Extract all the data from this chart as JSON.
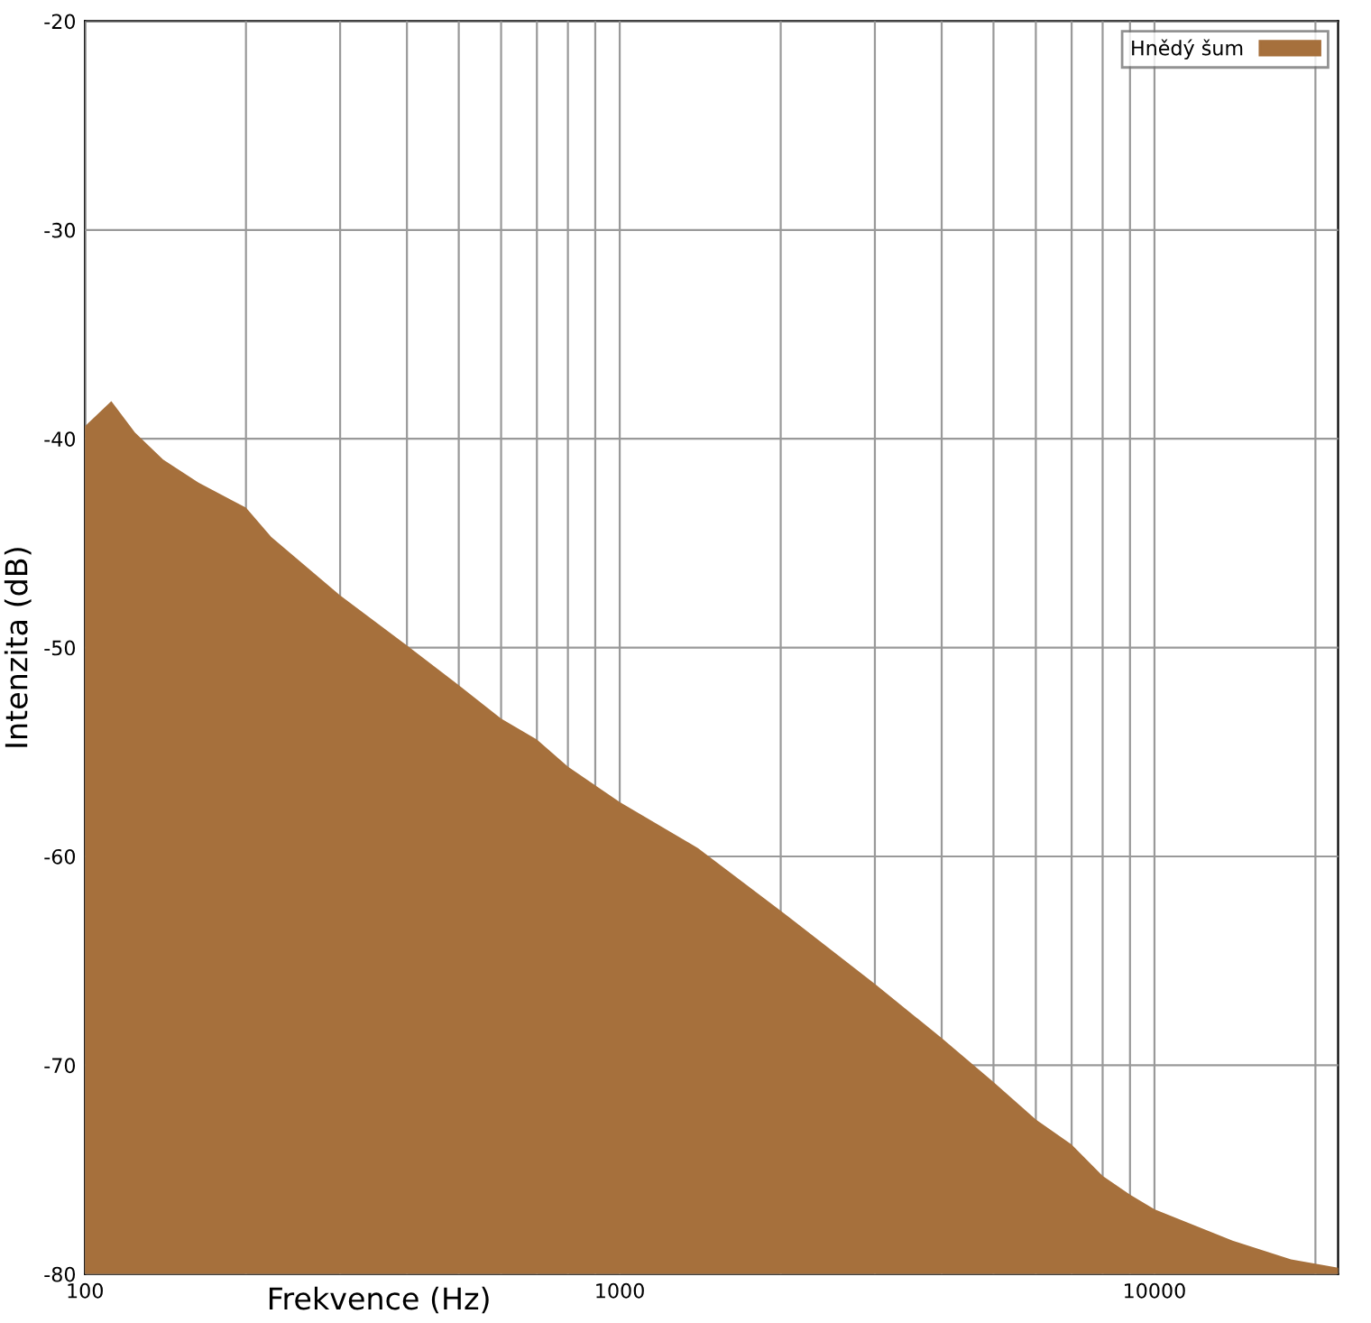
{
  "chart_data": {
    "type": "area",
    "xlabel": "Frekvence (Hz)",
    "ylabel": "Intenzita (dB)",
    "log": "x",
    "x": [
      100,
      112,
      124,
      140,
      163,
      200,
      223,
      300,
      400,
      500,
      600,
      700,
      800,
      900,
      1000,
      1400,
      2000,
      3000,
      4000,
      5000,
      6000,
      7000,
      8000,
      9000,
      10000,
      14000,
      18000,
      22050
    ],
    "series": [
      {
        "name": "Hnědý šum",
        "color": "#a6703c",
        "values": [
          -39.4,
          -38.2,
          -39.7,
          -41.0,
          -42.1,
          -43.3,
          -44.7,
          -47.5,
          -49.9,
          -51.8,
          -53.4,
          -54.4,
          -55.7,
          -56.6,
          -57.4,
          -59.6,
          -62.6,
          -66.1,
          -68.7,
          -70.8,
          -72.6,
          -73.8,
          -75.3,
          -76.2,
          -76.9,
          -78.4,
          -79.3,
          -79.7
        ]
      }
    ],
    "xlim": [
      100,
      22050
    ],
    "xticks": [
      100,
      {
        "value": 200,
        "label": null
      },
      {
        "value": 300,
        "label": null
      },
      {
        "value": 400,
        "label": null
      },
      {
        "value": 500,
        "label": null
      },
      {
        "value": 600,
        "label": null
      },
      {
        "value": 700,
        "label": null
      },
      {
        "value": 800,
        "label": null
      },
      {
        "value": 900,
        "label": null
      },
      1000,
      {
        "value": 2000,
        "label": null
      },
      {
        "value": 3000,
        "label": null
      },
      {
        "value": 4000,
        "label": null
      },
      {
        "value": 5000,
        "label": null
      },
      {
        "value": 6000,
        "label": null
      },
      {
        "value": 7000,
        "label": null
      },
      {
        "value": 8000,
        "label": null
      },
      {
        "value": 9000,
        "label": null
      },
      10000,
      {
        "value": 20000,
        "label": null
      }
    ],
    "ylim": [
      -80,
      -20
    ],
    "yticks": [
      -80,
      -70,
      -60,
      -50,
      -40,
      -30,
      -20
    ],
    "grid": true,
    "legend": "top right"
  }
}
